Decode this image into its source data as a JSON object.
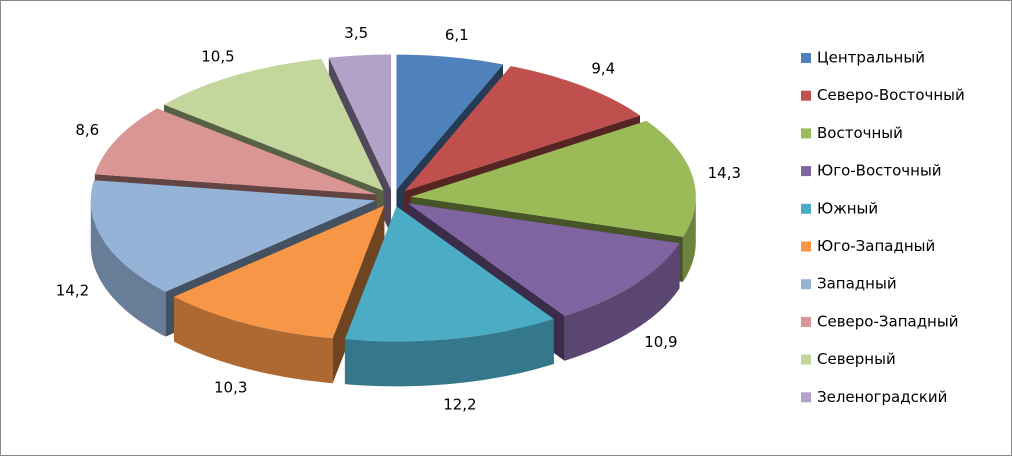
{
  "chart_data": {
    "type": "pie3d",
    "categories": [
      "Центральный",
      "Северо-Восточный",
      "Восточный",
      "Юго-Восточный",
      "Южный",
      "Юго-Западный",
      "Западный",
      "Северо-Западный",
      "Северный",
      "Зеленоградский"
    ],
    "values": [
      6.1,
      9.4,
      14.3,
      10.9,
      12.2,
      10.3,
      14.2,
      8.6,
      10.5,
      3.5
    ],
    "value_labels": [
      "6,1",
      "9,4",
      "14,3",
      "10,9",
      "12,2",
      "10,3",
      "14,2",
      "8,6",
      "10,5",
      "3,5"
    ],
    "colors": [
      "#4F81BD",
      "#C0504D",
      "#9BBB59",
      "#8064A2",
      "#4BACC6",
      "#F79646",
      "#95B3D7",
      "#D99694",
      "#C3D69B",
      "#B3A2C7"
    ],
    "legend": "right"
  }
}
